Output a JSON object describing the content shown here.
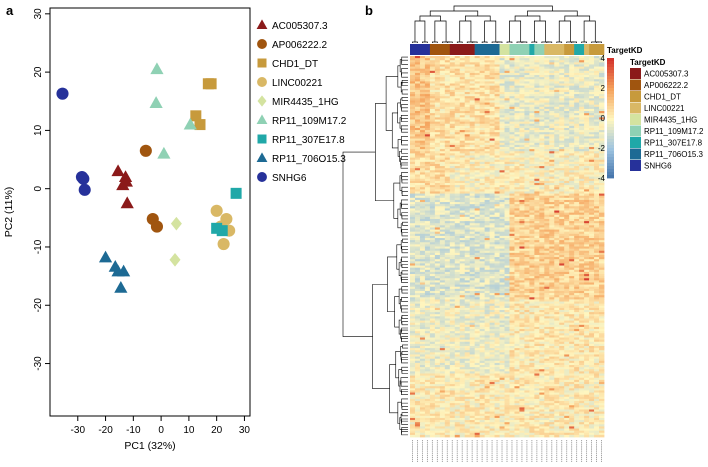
{
  "panels": {
    "a": "a",
    "b": "b"
  },
  "chart_data": [
    {
      "type": "scatter",
      "title": "",
      "xlabel": "PC1 (32%)",
      "ylabel": "PC2  (11%)",
      "xlim": [
        -40,
        32
      ],
      "ylim": [
        -39,
        31
      ],
      "xticks": [
        -30,
        -20,
        -10,
        0,
        10,
        20,
        30
      ],
      "yticks": [
        -30,
        -20,
        -10,
        0,
        10,
        20,
        30
      ],
      "legend_position": "right",
      "series": [
        {
          "name": "AC005307.3",
          "color": "#8b1a1a",
          "marker": "triangle-up",
          "points": [
            [
              -15.5,
              3
            ],
            [
              -12.8,
              2
            ],
            [
              -13.8,
              0.6
            ],
            [
              -12.5,
              1.2
            ],
            [
              -12.2,
              -2.5
            ]
          ]
        },
        {
          "name": "AP006222.2",
          "color": "#a0550f",
          "marker": "circle",
          "points": [
            [
              -5.5,
              6.5
            ],
            [
              -3,
              -5.2
            ],
            [
              -1.5,
              -6.5
            ]
          ]
        },
        {
          "name": "CHD1_DT",
          "color": "#c79a3c",
          "marker": "square",
          "points": [
            [
              17,
              18
            ],
            [
              18,
              18
            ],
            [
              12.5,
              12.5
            ],
            [
              14,
              11
            ]
          ]
        },
        {
          "name": "LINC00221",
          "color": "#d9b865",
          "marker": "circle",
          "points": [
            [
              20,
              -3.8
            ],
            [
              23.5,
              -5.2
            ],
            [
              21.5,
              -6.5
            ],
            [
              24.5,
              -7.2
            ],
            [
              22.5,
              -9.5
            ]
          ]
        },
        {
          "name": "MIR4435_1HG",
          "color": "#d4e3a0",
          "marker": "diamond",
          "points": [
            [
              5.5,
              -6
            ],
            [
              5,
              -12.2
            ]
          ]
        },
        {
          "name": "RP11_109M17.2",
          "color": "#8fd1b4",
          "marker": "triangle-up",
          "points": [
            [
              -1.5,
              20.5
            ],
            [
              -1.8,
              14.7
            ],
            [
              1,
              6
            ],
            [
              10.5,
              11
            ]
          ]
        },
        {
          "name": "RP11_307E17.8",
          "color": "#20a8a8",
          "marker": "square",
          "points": [
            [
              27,
              -0.8
            ],
            [
              20,
              -6.8
            ],
            [
              22,
              -7.2
            ]
          ]
        },
        {
          "name": "RP11_706O15.3",
          "color": "#1d6a94",
          "marker": "triangle-up",
          "points": [
            [
              -20,
              -11.8
            ],
            [
              -16.5,
              -13.4
            ],
            [
              -15.5,
              -14.2
            ],
            [
              -13.5,
              -14.2
            ],
            [
              -14.5,
              -17
            ]
          ]
        },
        {
          "name": "SNHG6",
          "color": "#26319a",
          "marker": "circle",
          "points": [
            [
              -35.5,
              16.3
            ],
            [
              -28.5,
              2
            ],
            [
              -28,
              1.7
            ],
            [
              -27.5,
              -0.2
            ]
          ]
        }
      ]
    },
    {
      "type": "heatmap",
      "title": "",
      "colorbar_label": "",
      "colorbar_ticks": [
        4,
        2,
        0,
        -2,
        -4
      ],
      "annotation_title": "TargetKD",
      "legend_title": "TargetKD",
      "n_rows": 180,
      "n_cols": 39,
      "column_groups": [
        {
          "name": "SNHG6",
          "color": "#26319a",
          "count": 4
        },
        {
          "name": "AP006222.2",
          "color": "#a0550f",
          "count": 4
        },
        {
          "name": "AC005307.3",
          "color": "#8b1a1a",
          "count": 5
        },
        {
          "name": "RP11_706O15.3",
          "color": "#1d6a94",
          "count": 5
        },
        {
          "name": "MIR4435_1HG",
          "color": "#d4e3a0",
          "count": 2
        },
        {
          "name": "RP11_109M17.2",
          "color": "#8fd1b4",
          "count": 4
        },
        {
          "name": "RP11_307E17.8",
          "color": "#20a8a8",
          "count": 1
        },
        {
          "name": "RP11_109M17.2",
          "color": "#8fd1b4",
          "count": 2
        },
        {
          "name": "LINC00221",
          "color": "#d9b865",
          "count": 4
        },
        {
          "name": "CHD1_DT",
          "color": "#c79a3c",
          "count": 2
        },
        {
          "name": "RP11_307E17.8",
          "color": "#20a8a8",
          "count": 2
        },
        {
          "name": "LINC00221",
          "color": "#d9b865",
          "count": 1
        },
        {
          "name": "CHD1_DT",
          "color": "#c79a3c",
          "count": 3
        }
      ],
      "legend_entries": [
        {
          "name": "AC005307.3",
          "color": "#8b1a1a"
        },
        {
          "name": "AP006222.2",
          "color": "#a0550f"
        },
        {
          "name": "CHD1_DT",
          "color": "#c79a3c"
        },
        {
          "name": "LINC00221",
          "color": "#d9b865"
        },
        {
          "name": "MIR4435_1HG",
          "color": "#d4e3a0"
        },
        {
          "name": "RP11_109M17.2",
          "color": "#8fd1b4"
        },
        {
          "name": "RP11_307E17.8",
          "color": "#20a8a8"
        },
        {
          "name": "RP11_706O15.3",
          "color": "#1d6a94"
        },
        {
          "name": "SNHG6",
          "color": "#26319a"
        }
      ],
      "colormap": [
        "#3f6fa8",
        "#9dc3df",
        "#fff6bf",
        "#f5a35d",
        "#d4342c"
      ],
      "cluster_blocks": [
        {
          "rows": [
            0,
            45
          ],
          "cols": [
            0,
            4
          ],
          "value": 1.2
        },
        {
          "rows": [
            0,
            45
          ],
          "cols": [
            4,
            18
          ],
          "value": 0.5
        },
        {
          "rows": [
            0,
            45
          ],
          "cols": [
            18,
            39
          ],
          "value": -0.4
        },
        {
          "rows": [
            45,
            65
          ],
          "cols": [
            0,
            8
          ],
          "value": 0.6
        },
        {
          "rows": [
            45,
            65
          ],
          "cols": [
            8,
            39
          ],
          "value": 0.1
        },
        {
          "rows": [
            65,
            115
          ],
          "cols": [
            0,
            20
          ],
          "value": -0.7
        },
        {
          "rows": [
            65,
            115
          ],
          "cols": [
            20,
            39
          ],
          "value": 0.9
        },
        {
          "rows": [
            115,
            150
          ],
          "cols": [
            0,
            20
          ],
          "value": -0.3
        },
        {
          "rows": [
            115,
            150
          ],
          "cols": [
            20,
            39
          ],
          "value": 0.3
        },
        {
          "rows": [
            150,
            180
          ],
          "cols": [
            0,
            39
          ],
          "value": 0.2
        }
      ]
    }
  ]
}
